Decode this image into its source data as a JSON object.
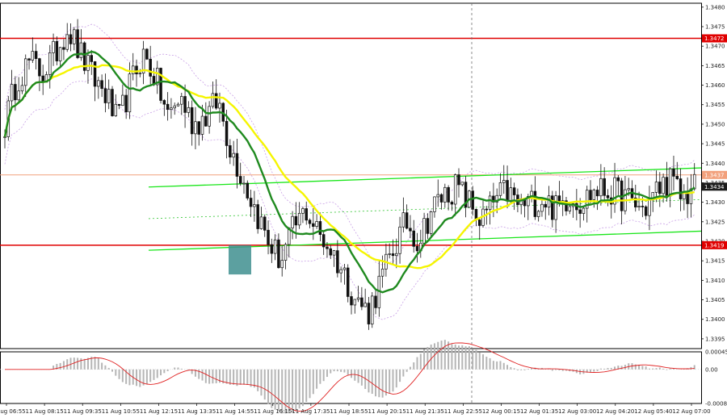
{
  "chart_data": {
    "type": "candlestick",
    "symbol": "GBPUSD M5",
    "price_axis": {
      "ylim": [
        1.33925,
        1.3481
      ],
      "ticks": [
        "1.3480",
        "1.3475",
        "1.3470",
        "1.3465",
        "1.3460",
        "1.3455",
        "1.3450",
        "1.3445",
        "1.3440",
        "1.3435",
        "1.3430",
        "1.3425",
        "1.3420",
        "1.3415",
        "1.3410",
        "1.3405",
        "1.3400",
        "1.3395"
      ]
    },
    "indicator_axis": {
      "ticks": [
        "0.00045",
        "0.00",
        "-0.00087"
      ]
    },
    "time_labels": [
      "11 Aug 06:55",
      "11 Aug 08:15",
      "11 Aug 09:35",
      "11 Aug 10:55",
      "11 Aug 12:15",
      "11 Aug 13:35",
      "11 Aug 14:55",
      "11 Aug 16:15",
      "11 Aug 17:35",
      "11 Aug 18:55",
      "11 Aug 20:15",
      "11 Aug 21:35",
      "11 Aug 22:55",
      "12 Aug 00:15",
      "12 Aug 01:35",
      "12 Aug 03:00",
      "12 Aug 04:20",
      "12 Aug 05:40",
      "12 Aug 07:00"
    ],
    "levels": [
      {
        "price": 1.3472,
        "label": "1.3472",
        "color": "#e00000"
      },
      {
        "price": 1.3419,
        "label": "1.3419",
        "color": "#e00000"
      },
      {
        "price": 1.3437,
        "label": "1.3437",
        "color": "#f2a07b"
      },
      {
        "price": 1.3434,
        "label": "1.3434",
        "color": "#1c1c1c"
      }
    ],
    "close_path": [
      1.345,
      1.3462,
      1.3466,
      1.3463,
      1.3468,
      1.3475,
      1.3468,
      1.3462,
      1.3458,
      1.345,
      1.346,
      1.3468,
      1.3462,
      1.3452,
      1.3457,
      1.345,
      1.3452,
      1.3456,
      1.3444,
      1.3436,
      1.3428,
      1.342,
      1.3415,
      1.3423,
      1.3428,
      1.3422,
      1.3418,
      1.3412,
      1.3405,
      1.3402,
      1.341,
      1.3418,
      1.3425,
      1.342,
      1.3428,
      1.3432,
      1.3434,
      1.343,
      1.3425,
      1.343,
      1.3433,
      1.3429,
      1.343,
      1.3431,
      1.3428,
      1.3432,
      1.343,
      1.3433,
      1.3433,
      1.3432,
      1.343,
      1.3428,
      1.3433,
      1.3436,
      1.3431,
      1.3434
    ],
    "candle_count": 200,
    "colors": {
      "candle": "#111111",
      "fast_ma": "#1f8a1f",
      "slow_ma": "#f5f500",
      "envelope": "#c9a0e6",
      "channel": "#19e619",
      "midline": "#2fc42f",
      "highlight_box": "#3f8f8f",
      "histogram": "#b5b5b5",
      "signal": "#e02020",
      "crosshair": "#707070"
    }
  }
}
